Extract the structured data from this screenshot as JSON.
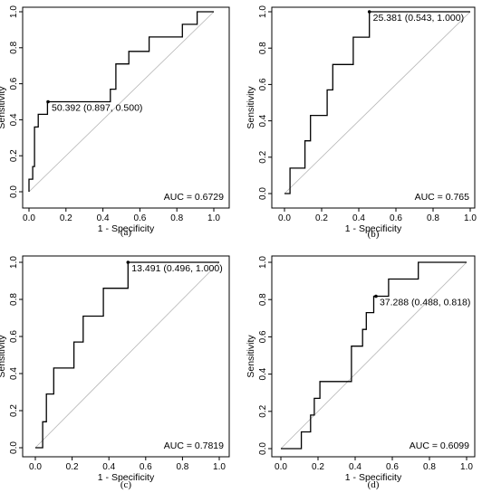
{
  "chart_data": [
    {
      "type": "line",
      "panel_label": "(a)",
      "xlabel": "1 - Specificity",
      "ylabel": "Sensitivity",
      "xlim": [
        0,
        1
      ],
      "ylim": [
        0,
        1
      ],
      "xticks": [
        "0.0",
        "0.2",
        "0.4",
        "0.6",
        "0.8",
        "1.0"
      ],
      "yticks": [
        "0.0",
        "0.2",
        "0.4",
        "0.6",
        "0.8",
        "1.0"
      ],
      "auc_text": "AUC = 0.6729",
      "annotation": "50.392 (0.897, 0.500)",
      "threshold_point": [
        0.103,
        0.5
      ],
      "roc": [
        [
          0,
          0
        ],
        [
          0,
          0.07
        ],
        [
          0.02,
          0.07
        ],
        [
          0.02,
          0.14
        ],
        [
          0.03,
          0.14
        ],
        [
          0.03,
          0.36
        ],
        [
          0.05,
          0.36
        ],
        [
          0.05,
          0.43
        ],
        [
          0.1,
          0.43
        ],
        [
          0.1,
          0.5
        ],
        [
          0.44,
          0.5
        ],
        [
          0.44,
          0.57
        ],
        [
          0.47,
          0.57
        ],
        [
          0.47,
          0.71
        ],
        [
          0.54,
          0.71
        ],
        [
          0.54,
          0.78
        ],
        [
          0.65,
          0.78
        ],
        [
          0.65,
          0.86
        ],
        [
          0.83,
          0.86
        ],
        [
          0.83,
          0.93
        ],
        [
          0.91,
          0.93
        ],
        [
          0.91,
          1
        ],
        [
          1,
          1
        ]
      ]
    },
    {
      "type": "line",
      "panel_label": "(b)",
      "xlabel": "1 - Specificity",
      "ylabel": "Sensitivity",
      "xlim": [
        0,
        1
      ],
      "ylim": [
        0,
        1
      ],
      "xticks": [
        "0.0",
        "0.2",
        "0.4",
        "0.6",
        "0.8",
        "1.0"
      ],
      "yticks": [
        "0.0",
        "0.2",
        "0.4",
        "0.6",
        "0.8",
        "1.0"
      ],
      "auc_text": "AUC = 0.765",
      "annotation": "25.381 (0.543, 1.000)",
      "threshold_point": [
        0.457,
        1.0
      ],
      "roc": [
        [
          0,
          0
        ],
        [
          0.03,
          0
        ],
        [
          0.03,
          0.14
        ],
        [
          0.11,
          0.14
        ],
        [
          0.11,
          0.29
        ],
        [
          0.14,
          0.29
        ],
        [
          0.14,
          0.43
        ],
        [
          0.23,
          0.43
        ],
        [
          0.23,
          0.57
        ],
        [
          0.26,
          0.57
        ],
        [
          0.26,
          0.71
        ],
        [
          0.37,
          0.71
        ],
        [
          0.37,
          0.86
        ],
        [
          0.457,
          0.86
        ],
        [
          0.457,
          1
        ],
        [
          1,
          1
        ]
      ]
    },
    {
      "type": "line",
      "panel_label": "(c)",
      "xlabel": "1 - Specificity",
      "ylabel": "Sensitivity",
      "xlim": [
        0,
        1
      ],
      "ylim": [
        0,
        1
      ],
      "xticks": [
        "0.0",
        "0.2",
        "0.4",
        "0.6",
        "0.8",
        "1.0"
      ],
      "yticks": [
        "0.0",
        "0.2",
        "0.4",
        "0.6",
        "0.8",
        "1.0"
      ],
      "auc_text": "AUC = 0.7819",
      "annotation": "13.491 (0.496, 1.000)",
      "threshold_point": [
        0.504,
        1.0
      ],
      "roc": [
        [
          0,
          0
        ],
        [
          0.04,
          0
        ],
        [
          0.04,
          0.14
        ],
        [
          0.06,
          0.14
        ],
        [
          0.06,
          0.29
        ],
        [
          0.1,
          0.29
        ],
        [
          0.1,
          0.43
        ],
        [
          0.21,
          0.43
        ],
        [
          0.21,
          0.57
        ],
        [
          0.26,
          0.57
        ],
        [
          0.26,
          0.71
        ],
        [
          0.37,
          0.71
        ],
        [
          0.37,
          0.86
        ],
        [
          0.504,
          0.86
        ],
        [
          0.504,
          1
        ],
        [
          1,
          1
        ]
      ]
    },
    {
      "type": "line",
      "panel_label": "(d)",
      "xlabel": "1 - Specificity",
      "ylabel": "Sensitivity",
      "xlim": [
        0,
        1
      ],
      "ylim": [
        0,
        1
      ],
      "xticks": [
        "0.0",
        "0.2",
        "0.4",
        "0.6",
        "0.8",
        "1.0"
      ],
      "yticks": [
        "0.0",
        "0.2",
        "0.4",
        "0.6",
        "0.8",
        "1.0"
      ],
      "auc_text": "AUC = 0.6099",
      "annotation": "37.288 (0.488, 0.818)",
      "threshold_point": [
        0.512,
        0.818
      ],
      "roc": [
        [
          0,
          0
        ],
        [
          0.11,
          0
        ],
        [
          0.11,
          0.09
        ],
        [
          0.16,
          0.09
        ],
        [
          0.16,
          0.18
        ],
        [
          0.18,
          0.18
        ],
        [
          0.18,
          0.27
        ],
        [
          0.21,
          0.27
        ],
        [
          0.21,
          0.36
        ],
        [
          0.38,
          0.36
        ],
        [
          0.38,
          0.55
        ],
        [
          0.44,
          0.55
        ],
        [
          0.44,
          0.64
        ],
        [
          0.46,
          0.64
        ],
        [
          0.46,
          0.73
        ],
        [
          0.5,
          0.73
        ],
        [
          0.5,
          0.818
        ],
        [
          0.58,
          0.818
        ],
        [
          0.58,
          0.91
        ],
        [
          0.74,
          0.91
        ],
        [
          0.74,
          1
        ],
        [
          1,
          1
        ]
      ]
    }
  ]
}
